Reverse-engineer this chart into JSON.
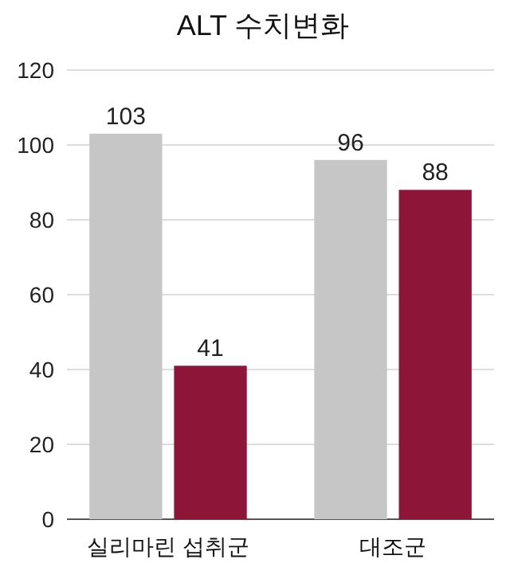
{
  "chart_data": {
    "type": "bar",
    "title": "ALT 수치변화",
    "categories": [
      "실리마린 섭취군",
      "대조군"
    ],
    "series": [
      {
        "color": "#c6c6c6",
        "values": [
          103,
          96
        ]
      },
      {
        "color": "#8c1538",
        "values": [
          41,
          88
        ]
      }
    ],
    "ylim": [
      0,
      120
    ],
    "yticks": [
      0,
      20,
      40,
      60,
      80,
      100,
      120
    ],
    "grid": "y",
    "data_labels": true
  }
}
